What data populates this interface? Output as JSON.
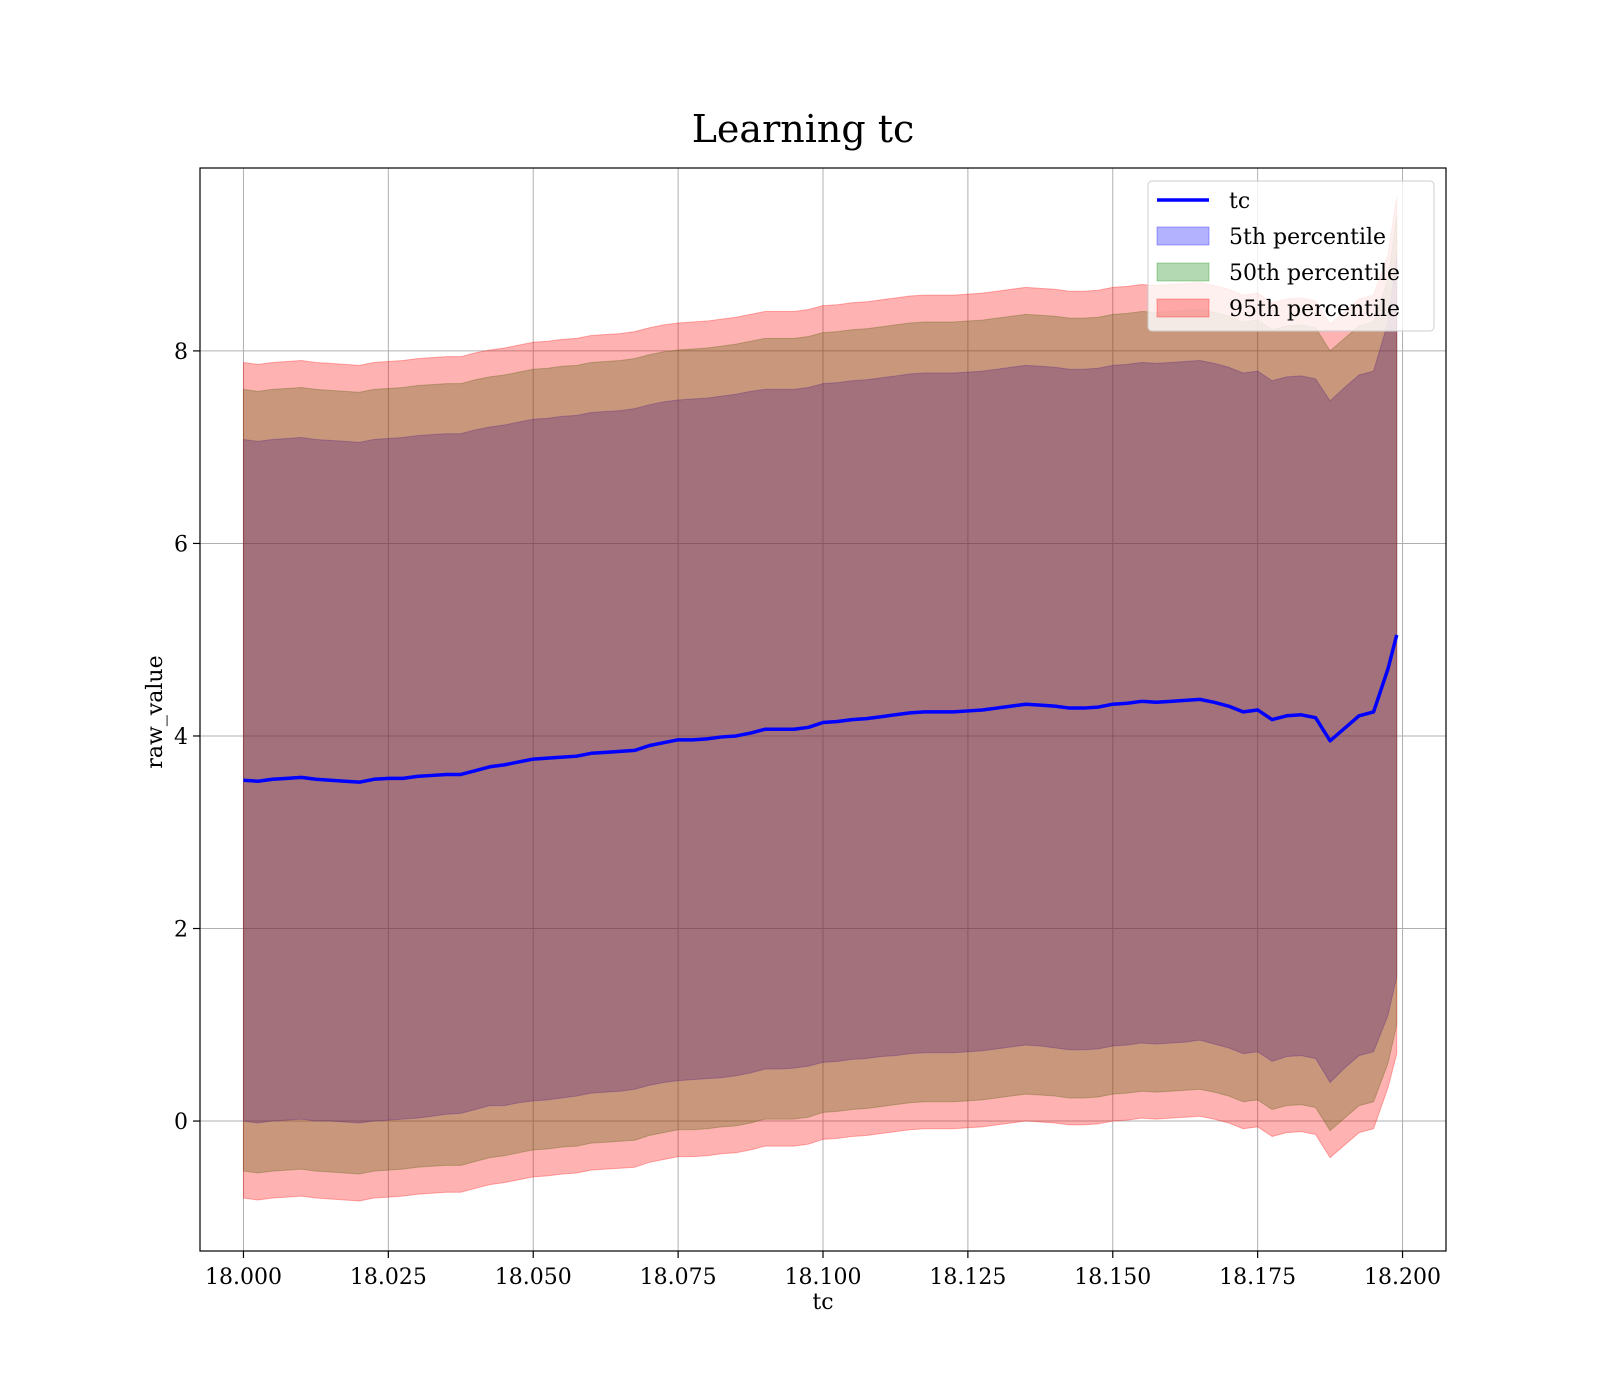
{
  "chart_data": {
    "type": "line",
    "title": "Learning tc",
    "xlabel": "tc",
    "ylabel": "raw_value",
    "xlim": [
      17.9925,
      18.2075
    ],
    "ylim": [
      -1.35,
      9.9
    ],
    "xticks": [
      18.0,
      18.025,
      18.05,
      18.075,
      18.1,
      18.125,
      18.15,
      18.175,
      18.2
    ],
    "xtick_labels": [
      "18.000",
      "18.025",
      "18.050",
      "18.075",
      "18.100",
      "18.125",
      "18.150",
      "18.175",
      "18.200"
    ],
    "yticks": [
      0,
      2,
      4,
      6,
      8
    ],
    "ytick_labels": [
      "0",
      "2",
      "4",
      "6",
      "8"
    ],
    "grid": true,
    "legend_position": "top-right",
    "colors": {
      "line": "#0000ff",
      "band_5th": "#0000ff",
      "band_50th": "#008000",
      "band_95th": "#ff0000"
    },
    "x": [
      18.0,
      18.0025,
      18.005,
      18.0075,
      18.01,
      18.0125,
      18.015,
      18.0175,
      18.02,
      18.0225,
      18.025,
      18.0275,
      18.03,
      18.0325,
      18.035,
      18.0375,
      18.04,
      18.0425,
      18.045,
      18.0475,
      18.05,
      18.0525,
      18.055,
      18.0575,
      18.06,
      18.0625,
      18.065,
      18.0675,
      18.07,
      18.0725,
      18.075,
      18.0775,
      18.08,
      18.0825,
      18.085,
      18.0875,
      18.09,
      18.0925,
      18.095,
      18.0975,
      18.1,
      18.1025,
      18.105,
      18.1075,
      18.11,
      18.1125,
      18.115,
      18.1175,
      18.12,
      18.1225,
      18.125,
      18.1275,
      18.13,
      18.1325,
      18.135,
      18.1375,
      18.14,
      18.1425,
      18.145,
      18.1475,
      18.15,
      18.1525,
      18.155,
      18.1575,
      18.16,
      18.1625,
      18.165,
      18.1675,
      18.17,
      18.1725,
      18.175,
      18.1775,
      18.18,
      18.1825,
      18.185,
      18.1875,
      18.19,
      18.1925,
      18.195,
      18.1975,
      18.199
    ],
    "series": [
      {
        "name": "tc",
        "kind": "line",
        "values": [
          3.54,
          3.53,
          3.55,
          3.56,
          3.57,
          3.55,
          3.54,
          3.53,
          3.52,
          3.55,
          3.56,
          3.56,
          3.58,
          3.59,
          3.6,
          3.6,
          3.64,
          3.68,
          3.7,
          3.73,
          3.76,
          3.77,
          3.78,
          3.79,
          3.82,
          3.83,
          3.84,
          3.85,
          3.9,
          3.93,
          3.96,
          3.96,
          3.97,
          3.99,
          4.0,
          4.03,
          4.07,
          4.07,
          4.07,
          4.09,
          4.14,
          4.15,
          4.17,
          4.18,
          4.2,
          4.22,
          4.24,
          4.25,
          4.25,
          4.25,
          4.26,
          4.27,
          4.29,
          4.31,
          4.33,
          4.32,
          4.31,
          4.29,
          4.29,
          4.3,
          4.33,
          4.34,
          4.36,
          4.35,
          4.36,
          4.37,
          4.38,
          4.35,
          4.31,
          4.25,
          4.27,
          4.17,
          4.21,
          4.22,
          4.19,
          3.95,
          4.08,
          4.21,
          4.25,
          4.7,
          5.05
        ]
      },
      {
        "name": "5th percentile",
        "kind": "band",
        "lower": [
          0.0,
          -0.02,
          0.0,
          0.01,
          0.02,
          0.0,
          0.0,
          -0.01,
          -0.02,
          0.0,
          0.01,
          0.02,
          0.03,
          0.05,
          0.07,
          0.08,
          0.12,
          0.16,
          0.16,
          0.19,
          0.21,
          0.22,
          0.24,
          0.26,
          0.29,
          0.3,
          0.31,
          0.33,
          0.37,
          0.4,
          0.42,
          0.43,
          0.44,
          0.45,
          0.47,
          0.5,
          0.54,
          0.54,
          0.55,
          0.57,
          0.61,
          0.62,
          0.64,
          0.65,
          0.67,
          0.68,
          0.7,
          0.71,
          0.71,
          0.71,
          0.72,
          0.73,
          0.75,
          0.77,
          0.79,
          0.78,
          0.76,
          0.74,
          0.74,
          0.75,
          0.78,
          0.79,
          0.81,
          0.8,
          0.81,
          0.82,
          0.84,
          0.8,
          0.76,
          0.7,
          0.72,
          0.62,
          0.67,
          0.68,
          0.65,
          0.4,
          0.55,
          0.68,
          0.72,
          1.1,
          1.5
        ],
        "upper": [
          7.08,
          7.06,
          7.08,
          7.09,
          7.1,
          7.08,
          7.07,
          7.06,
          7.05,
          7.08,
          7.09,
          7.1,
          7.12,
          7.13,
          7.14,
          7.14,
          7.18,
          7.21,
          7.23,
          7.26,
          7.29,
          7.3,
          7.32,
          7.33,
          7.36,
          7.37,
          7.38,
          7.4,
          7.44,
          7.47,
          7.49,
          7.5,
          7.51,
          7.53,
          7.55,
          7.58,
          7.6,
          7.6,
          7.6,
          7.62,
          7.66,
          7.67,
          7.69,
          7.7,
          7.72,
          7.74,
          7.76,
          7.77,
          7.77,
          7.77,
          7.78,
          7.79,
          7.81,
          7.83,
          7.85,
          7.84,
          7.83,
          7.81,
          7.81,
          7.82,
          7.85,
          7.86,
          7.88,
          7.87,
          7.88,
          7.89,
          7.9,
          7.87,
          7.83,
          7.77,
          7.79,
          7.69,
          7.73,
          7.74,
          7.71,
          7.48,
          7.62,
          7.75,
          7.79,
          8.3,
          9.0
        ]
      },
      {
        "name": "50th percentile",
        "kind": "band",
        "lower": [
          -0.52,
          -0.54,
          -0.52,
          -0.51,
          -0.5,
          -0.52,
          -0.53,
          -0.54,
          -0.55,
          -0.52,
          -0.51,
          -0.5,
          -0.48,
          -0.47,
          -0.46,
          -0.46,
          -0.42,
          -0.38,
          -0.36,
          -0.33,
          -0.3,
          -0.29,
          -0.27,
          -0.26,
          -0.23,
          -0.22,
          -0.21,
          -0.2,
          -0.15,
          -0.12,
          -0.09,
          -0.09,
          -0.08,
          -0.06,
          -0.05,
          -0.02,
          0.02,
          0.02,
          0.02,
          0.04,
          0.09,
          0.1,
          0.12,
          0.13,
          0.15,
          0.17,
          0.19,
          0.2,
          0.2,
          0.2,
          0.21,
          0.22,
          0.24,
          0.26,
          0.28,
          0.27,
          0.26,
          0.24,
          0.24,
          0.25,
          0.28,
          0.29,
          0.31,
          0.3,
          0.31,
          0.32,
          0.33,
          0.3,
          0.26,
          0.2,
          0.22,
          0.12,
          0.16,
          0.17,
          0.14,
          -0.1,
          0.03,
          0.16,
          0.2,
          0.6,
          1.0
        ],
        "upper": [
          7.6,
          7.58,
          7.6,
          7.61,
          7.62,
          7.6,
          7.59,
          7.58,
          7.57,
          7.6,
          7.61,
          7.62,
          7.64,
          7.65,
          7.66,
          7.66,
          7.7,
          7.73,
          7.75,
          7.78,
          7.81,
          7.82,
          7.84,
          7.85,
          7.88,
          7.89,
          7.9,
          7.92,
          7.96,
          7.99,
          8.01,
          8.02,
          8.03,
          8.05,
          8.07,
          8.1,
          8.13,
          8.13,
          8.13,
          8.15,
          8.19,
          8.2,
          8.22,
          8.23,
          8.25,
          8.27,
          8.29,
          8.3,
          8.3,
          8.3,
          8.31,
          8.32,
          8.34,
          8.36,
          8.38,
          8.37,
          8.36,
          8.34,
          8.34,
          8.35,
          8.38,
          8.39,
          8.41,
          8.4,
          8.41,
          8.42,
          8.43,
          8.4,
          8.36,
          8.3,
          8.32,
          8.22,
          8.26,
          8.27,
          8.24,
          8.0,
          8.13,
          8.26,
          8.3,
          8.75,
          9.4
        ]
      },
      {
        "name": "95th percentile",
        "kind": "band",
        "lower": [
          -0.8,
          -0.82,
          -0.8,
          -0.79,
          -0.78,
          -0.8,
          -0.81,
          -0.82,
          -0.83,
          -0.8,
          -0.79,
          -0.78,
          -0.76,
          -0.75,
          -0.74,
          -0.74,
          -0.7,
          -0.66,
          -0.64,
          -0.61,
          -0.58,
          -0.57,
          -0.55,
          -0.54,
          -0.51,
          -0.5,
          -0.49,
          -0.48,
          -0.43,
          -0.4,
          -0.37,
          -0.37,
          -0.36,
          -0.34,
          -0.33,
          -0.3,
          -0.26,
          -0.26,
          -0.26,
          -0.24,
          -0.19,
          -0.18,
          -0.16,
          -0.15,
          -0.13,
          -0.11,
          -0.09,
          -0.08,
          -0.08,
          -0.08,
          -0.07,
          -0.06,
          -0.04,
          -0.02,
          0.0,
          -0.01,
          -0.02,
          -0.04,
          -0.04,
          -0.03,
          0.0,
          0.01,
          0.03,
          0.02,
          0.03,
          0.04,
          0.05,
          0.02,
          -0.02,
          -0.08,
          -0.06,
          -0.16,
          -0.12,
          -0.11,
          -0.14,
          -0.38,
          -0.25,
          -0.12,
          -0.08,
          0.35,
          0.7
        ],
        "upper": [
          7.88,
          7.86,
          7.88,
          7.89,
          7.9,
          7.88,
          7.87,
          7.86,
          7.85,
          7.88,
          7.89,
          7.9,
          7.92,
          7.93,
          7.94,
          7.94,
          7.98,
          8.01,
          8.03,
          8.06,
          8.09,
          8.1,
          8.12,
          8.13,
          8.16,
          8.17,
          8.18,
          8.2,
          8.24,
          8.27,
          8.29,
          8.3,
          8.31,
          8.33,
          8.35,
          8.38,
          8.41,
          8.41,
          8.41,
          8.43,
          8.47,
          8.48,
          8.5,
          8.51,
          8.53,
          8.55,
          8.57,
          8.58,
          8.58,
          8.58,
          8.59,
          8.6,
          8.62,
          8.64,
          8.66,
          8.65,
          8.64,
          8.62,
          8.62,
          8.63,
          8.66,
          8.67,
          8.69,
          8.68,
          8.69,
          8.7,
          8.71,
          8.68,
          8.64,
          8.58,
          8.6,
          8.5,
          8.54,
          8.55,
          8.52,
          8.28,
          8.41,
          8.54,
          8.58,
          9.0,
          9.6
        ]
      }
    ]
  }
}
